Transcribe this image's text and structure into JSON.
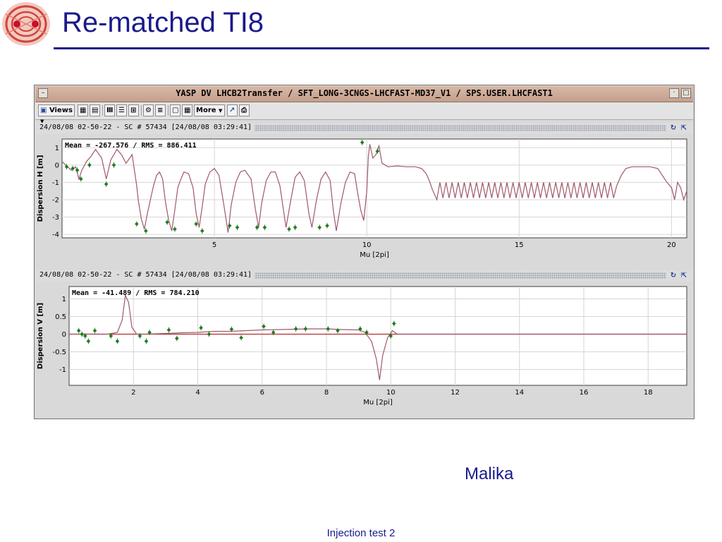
{
  "slide": {
    "title": "Re-matched TI8",
    "author": "Malika",
    "footer": "Injection test 2"
  },
  "window": {
    "title": "YASP DV LHCB2Transfer / SFT_LONG-3CNGS-LHCFAST-MD37_V1 / SPS.USER.LHCFAST1",
    "toolbar": {
      "views_label": "Views",
      "more_label": "More"
    }
  },
  "colors": {
    "title_blue": "#1a1a8c",
    "model_line": "#a05868",
    "measurement": "#1f7a1f",
    "window_title_bg": "#d0ae9a"
  },
  "chart_data": [
    {
      "type": "line",
      "header": "24/08/08 02-50-22 - SC # 57434  [24/08/08 03:29:41]",
      "annotation": "Mean = -267.576 / RMS = 886.411",
      "xlabel": "Mu [2pi]",
      "ylabel": "Dispersion H [m]",
      "xlim": [
        0,
        20.5
      ],
      "ylim": [
        -4.2,
        1.5
      ],
      "xticks": [
        5,
        10,
        15,
        20
      ],
      "yticks": [
        1,
        0,
        -1,
        -2,
        -3,
        -4
      ],
      "grid": true,
      "series": [
        {
          "style": "model_line",
          "points": [
            [
              0,
              0.2
            ],
            [
              0.3,
              -0.3
            ],
            [
              0.45,
              -0.1
            ],
            [
              0.55,
              -0.8
            ],
            [
              0.65,
              -0.3
            ],
            [
              0.8,
              0.2
            ],
            [
              0.95,
              0.5
            ],
            [
              1.1,
              0.9
            ],
            [
              1.3,
              0.4
            ],
            [
              1.45,
              -0.8
            ],
            [
              1.6,
              0.3
            ],
            [
              1.8,
              0.9
            ],
            [
              1.95,
              0.6
            ],
            [
              2.1,
              0.1
            ],
            [
              2.3,
              0.6
            ],
            [
              2.45,
              -1.2
            ],
            [
              2.5,
              -2.0
            ],
            [
              2.6,
              -3.1
            ],
            [
              2.7,
              -3.7
            ],
            [
              2.8,
              -2.8
            ],
            [
              2.9,
              -2.0
            ],
            [
              3.0,
              -1.2
            ],
            [
              3.1,
              -0.6
            ],
            [
              3.2,
              -0.4
            ],
            [
              3.3,
              -0.8
            ],
            [
              3.4,
              -2.2
            ],
            [
              3.5,
              -3.2
            ],
            [
              3.6,
              -3.8
            ],
            [
              3.7,
              -2.6
            ],
            [
              3.8,
              -1.3
            ],
            [
              3.9,
              -0.8
            ],
            [
              4.0,
              -0.4
            ],
            [
              4.15,
              -0.5
            ],
            [
              4.3,
              -1.3
            ],
            [
              4.4,
              -2.8
            ],
            [
              4.5,
              -3.6
            ],
            [
              4.6,
              -2.4
            ],
            [
              4.7,
              -1.1
            ],
            [
              4.85,
              -0.4
            ],
            [
              5.0,
              -0.2
            ],
            [
              5.15,
              -0.6
            ],
            [
              5.3,
              -2.2
            ],
            [
              5.45,
              -3.9
            ],
            [
              5.55,
              -2.3
            ],
            [
              5.7,
              -1.0
            ],
            [
              5.85,
              -0.4
            ],
            [
              6.0,
              -0.3
            ],
            [
              6.2,
              -0.8
            ],
            [
              6.35,
              -2.6
            ],
            [
              6.45,
              -3.6
            ],
            [
              6.55,
              -2.2
            ],
            [
              6.7,
              -0.9
            ],
            [
              6.85,
              -0.4
            ],
            [
              7.0,
              -0.4
            ],
            [
              7.15,
              -1.2
            ],
            [
              7.3,
              -3.0
            ],
            [
              7.35,
              -3.6
            ],
            [
              7.5,
              -2.1
            ],
            [
              7.65,
              -0.7
            ],
            [
              7.8,
              -0.4
            ],
            [
              7.95,
              -0.9
            ],
            [
              8.1,
              -2.8
            ],
            [
              8.2,
              -3.6
            ],
            [
              8.35,
              -2.0
            ],
            [
              8.5,
              -0.8
            ],
            [
              8.65,
              -0.4
            ],
            [
              8.8,
              -0.9
            ],
            [
              8.9,
              -2.6
            ],
            [
              9.0,
              -3.8
            ],
            [
              9.15,
              -2.2
            ],
            [
              9.3,
              -1.0
            ],
            [
              9.45,
              -0.4
            ],
            [
              9.6,
              -0.5
            ],
            [
              9.7,
              -1.6
            ],
            [
              9.8,
              -2.6
            ],
            [
              9.9,
              -3.2
            ],
            [
              10.0,
              -1.5
            ],
            [
              10.05,
              0.5
            ],
            [
              10.1,
              1.2
            ],
            [
              10.2,
              0.4
            ],
            [
              10.3,
              0.6
            ],
            [
              10.4,
              1.1
            ],
            [
              10.5,
              0.1
            ],
            [
              10.7,
              -0.1
            ],
            [
              11.0,
              -0.05
            ],
            [
              11.3,
              -0.1
            ],
            [
              11.6,
              -0.1
            ],
            [
              11.8,
              -0.2
            ],
            [
              11.95,
              -0.5
            ],
            [
              12.05,
              -0.9
            ],
            [
              12.15,
              -1.4
            ],
            [
              12.3,
              -2.0
            ],
            [
              12.4,
              -1.0
            ],
            [
              12.5,
              -1.9
            ],
            [
              12.6,
              -1.0
            ],
            [
              12.7,
              -1.9
            ],
            [
              12.8,
              -1.0
            ],
            [
              12.9,
              -1.9
            ],
            [
              13.0,
              -1.0
            ],
            [
              13.1,
              -1.9
            ],
            [
              13.2,
              -1.0
            ],
            [
              13.3,
              -1.9
            ],
            [
              13.4,
              -1.0
            ],
            [
              13.5,
              -1.9
            ],
            [
              13.6,
              -1.0
            ],
            [
              13.7,
              -1.9
            ],
            [
              13.8,
              -1.0
            ],
            [
              13.9,
              -1.9
            ],
            [
              14.0,
              -1.0
            ],
            [
              14.1,
              -1.9
            ],
            [
              14.2,
              -1.0
            ],
            [
              14.3,
              -1.9
            ],
            [
              14.4,
              -1.0
            ],
            [
              14.5,
              -1.9
            ],
            [
              14.6,
              -1.0
            ],
            [
              14.7,
              -1.9
            ],
            [
              14.8,
              -1.0
            ],
            [
              14.9,
              -1.9
            ],
            [
              15.0,
              -1.0
            ],
            [
              15.1,
              -1.9
            ],
            [
              15.2,
              -1.0
            ],
            [
              15.3,
              -1.9
            ],
            [
              15.4,
              -1.0
            ],
            [
              15.5,
              -1.9
            ],
            [
              15.6,
              -1.0
            ],
            [
              15.7,
              -1.9
            ],
            [
              15.8,
              -1.0
            ],
            [
              15.9,
              -1.9
            ],
            [
              16.0,
              -1.0
            ],
            [
              16.1,
              -1.9
            ],
            [
              16.2,
              -1.0
            ],
            [
              16.3,
              -1.9
            ],
            [
              16.4,
              -1.0
            ],
            [
              16.5,
              -1.9
            ],
            [
              16.6,
              -1.0
            ],
            [
              16.7,
              -1.9
            ],
            [
              16.8,
              -1.0
            ],
            [
              16.9,
              -1.9
            ],
            [
              17.0,
              -1.0
            ],
            [
              17.1,
              -1.9
            ],
            [
              17.2,
              -1.0
            ],
            [
              17.3,
              -1.9
            ],
            [
              17.4,
              -1.0
            ],
            [
              17.5,
              -1.9
            ],
            [
              17.6,
              -1.0
            ],
            [
              17.7,
              -1.9
            ],
            [
              17.8,
              -1.0
            ],
            [
              17.9,
              -1.9
            ],
            [
              18.0,
              -1.0
            ],
            [
              18.1,
              -1.9
            ],
            [
              18.2,
              -1.2
            ],
            [
              18.35,
              -0.6
            ],
            [
              18.5,
              -0.2
            ],
            [
              18.7,
              -0.1
            ],
            [
              19.0,
              -0.1
            ],
            [
              19.3,
              -0.1
            ],
            [
              19.55,
              -0.2
            ],
            [
              19.7,
              -0.6
            ],
            [
              19.85,
              -1.0
            ],
            [
              20.0,
              -1.3
            ],
            [
              20.1,
              -2.0
            ],
            [
              20.2,
              -1.0
            ],
            [
              20.3,
              -1.3
            ],
            [
              20.4,
              -2.0
            ],
            [
              20.5,
              -1.5
            ]
          ]
        },
        {
          "style": "measurement",
          "points": [
            [
              0.15,
              -0.1
            ],
            [
              0.35,
              -0.2
            ],
            [
              0.5,
              -0.3
            ],
            [
              0.62,
              -0.8
            ],
            [
              0.9,
              0.0
            ],
            [
              1.45,
              -1.1
            ],
            [
              1.7,
              0.0
            ],
            [
              2.45,
              -3.4
            ],
            [
              2.75,
              -3.8
            ],
            [
              3.45,
              -3.3
            ],
            [
              3.7,
              -3.7
            ],
            [
              4.4,
              -3.4
            ],
            [
              4.6,
              -3.8
            ],
            [
              5.5,
              -3.5
            ],
            [
              5.75,
              -3.6
            ],
            [
              6.4,
              -3.6
            ],
            [
              6.65,
              -3.6
            ],
            [
              7.45,
              -3.7
            ],
            [
              7.65,
              -3.6
            ],
            [
              8.45,
              -3.6
            ],
            [
              8.7,
              -3.5
            ],
            [
              9.85,
              1.3
            ],
            [
              10.35,
              0.8
            ]
          ]
        }
      ]
    },
    {
      "type": "line",
      "header": "24/08/08 02-50-22 - SC # 57434  [24/08/08 03:29:41]",
      "annotation": "Mean = -41.489 / RMS = 784.210",
      "xlabel": "Mu [2pi]",
      "ylabel": "Dispersion V [m]",
      "xlim": [
        0,
        19.2
      ],
      "ylim": [
        -1.45,
        1.35
      ],
      "xticks": [
        2,
        4,
        6,
        8,
        10,
        12,
        14,
        16,
        18
      ],
      "yticks": [
        1,
        0.5,
        0,
        -0.5,
        -1
      ],
      "grid": true,
      "series": [
        {
          "style": "model_line",
          "points": [
            [
              0,
              0.0
            ],
            [
              1.2,
              0.0
            ],
            [
              1.5,
              0.05
            ],
            [
              1.65,
              0.4
            ],
            [
              1.75,
              1.1
            ],
            [
              1.85,
              0.9
            ],
            [
              1.95,
              0.2
            ],
            [
              2.1,
              0.0
            ],
            [
              2.4,
              0.0
            ],
            [
              3.0,
              0.02
            ],
            [
              3.5,
              0.04
            ],
            [
              4.0,
              0.05
            ],
            [
              4.5,
              0.08
            ],
            [
              5.0,
              0.08
            ],
            [
              5.5,
              0.1
            ],
            [
              6.0,
              0.12
            ],
            [
              6.5,
              0.13
            ],
            [
              7.0,
              0.14
            ],
            [
              7.5,
              0.15
            ],
            [
              8.0,
              0.15
            ],
            [
              8.5,
              0.13
            ],
            [
              9.0,
              0.12
            ],
            [
              9.2,
              0.05
            ],
            [
              9.4,
              -0.2
            ],
            [
              9.55,
              -0.7
            ],
            [
              9.65,
              -1.3
            ],
            [
              9.75,
              -0.6
            ],
            [
              9.9,
              -0.1
            ],
            [
              10.05,
              0.1
            ],
            [
              10.2,
              0.0
            ],
            [
              19.2,
              0.0
            ]
          ]
        },
        {
          "style": "measurement",
          "points": [
            [
              0.3,
              0.1
            ],
            [
              0.4,
              0.0
            ],
            [
              0.5,
              -0.05
            ],
            [
              0.6,
              -0.2
            ],
            [
              0.8,
              0.1
            ],
            [
              1.3,
              -0.05
            ],
            [
              1.5,
              -0.2
            ],
            [
              2.2,
              -0.05
            ],
            [
              2.4,
              -0.2
            ],
            [
              2.5,
              0.05
            ],
            [
              3.1,
              0.12
            ],
            [
              3.35,
              -0.12
            ],
            [
              4.1,
              0.18
            ],
            [
              4.35,
              0.0
            ],
            [
              5.05,
              0.14
            ],
            [
              5.35,
              -0.1
            ],
            [
              6.05,
              0.22
            ],
            [
              6.35,
              0.05
            ],
            [
              7.05,
              0.15
            ],
            [
              7.35,
              0.15
            ],
            [
              8.05,
              0.15
            ],
            [
              8.35,
              0.1
            ],
            [
              9.05,
              0.15
            ],
            [
              9.25,
              0.05
            ],
            [
              10.1,
              0.3
            ],
            [
              10.0,
              -0.05
            ]
          ]
        }
      ]
    }
  ]
}
